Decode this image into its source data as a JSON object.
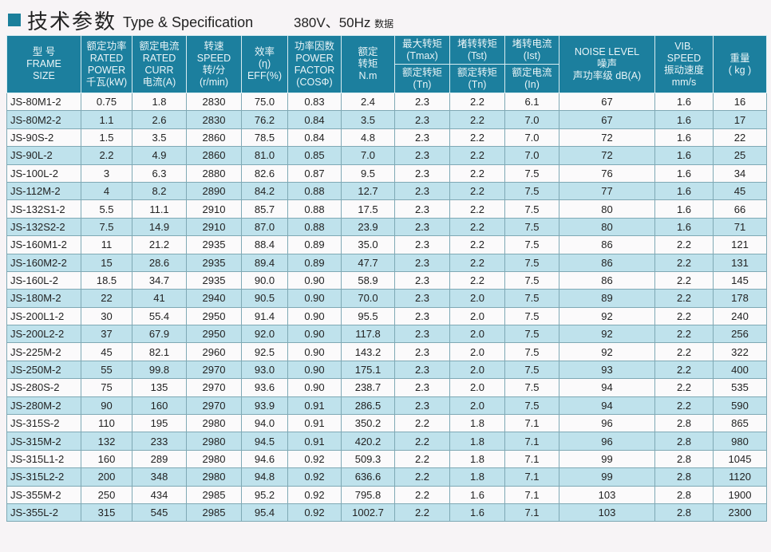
{
  "title": {
    "cn": "技术参数",
    "en": "Type & Specification",
    "voltage": "380V、50Hz",
    "voltage_suffix": "数据"
  },
  "headers": {
    "frame": [
      "型 号",
      "FRAME",
      "SIZE"
    ],
    "power": [
      "额定功率",
      "RATED",
      "POWER",
      "千瓦(kW)"
    ],
    "curr": [
      "额定电流",
      "RATED",
      "CURR",
      "电流(A)"
    ],
    "speed": [
      "转速",
      "SPEED",
      "转/分",
      "(r/min)"
    ],
    "eff": [
      "效率",
      "(η)",
      "EFF(%)"
    ],
    "pf": [
      "功率因数",
      "POWER",
      "FACTOR",
      "(COSΦ)"
    ],
    "torque": [
      "额定",
      "转矩",
      "N.m"
    ],
    "tmax_top": [
      "最大转矩",
      "(Tmax)"
    ],
    "tmax_bot": [
      "额定转矩",
      "(Tn)"
    ],
    "tst_top": [
      "堵转转矩",
      "(Tst)"
    ],
    "tst_bot": [
      "额定转矩",
      "(Tn)"
    ],
    "ist_top": [
      "堵转电流",
      "(Ist)"
    ],
    "ist_bot": [
      "额定电流",
      "(In)"
    ],
    "noise": [
      "NOISE LEVEL",
      "噪声",
      "声功率级 dB(A)"
    ],
    "vib": [
      "VIB.",
      "SPEED",
      "振动速度",
      "mm/s"
    ],
    "weight": [
      "重量",
      "( kg )"
    ]
  },
  "rows": [
    [
      "JS-80M1-2",
      "0.75",
      "1.8",
      "2830",
      "75.0",
      "0.83",
      "2.4",
      "2.3",
      "2.2",
      "6.1",
      "67",
      "1.6",
      "16"
    ],
    [
      "JS-80M2-2",
      "1.1",
      "2.6",
      "2830",
      "76.2",
      "0.84",
      "3.5",
      "2.3",
      "2.2",
      "7.0",
      "67",
      "1.6",
      "17"
    ],
    [
      "JS-90S-2",
      "1.5",
      "3.5",
      "2860",
      "78.5",
      "0.84",
      "4.8",
      "2.3",
      "2.2",
      "7.0",
      "72",
      "1.6",
      "22"
    ],
    [
      "JS-90L-2",
      "2.2",
      "4.9",
      "2860",
      "81.0",
      "0.85",
      "7.0",
      "2.3",
      "2.2",
      "7.0",
      "72",
      "1.6",
      "25"
    ],
    [
      "JS-100L-2",
      "3",
      "6.3",
      "2880",
      "82.6",
      "0.87",
      "9.5",
      "2.3",
      "2.2",
      "7.5",
      "76",
      "1.6",
      "34"
    ],
    [
      "JS-112M-2",
      "4",
      "8.2",
      "2890",
      "84.2",
      "0.88",
      "12.7",
      "2.3",
      "2.2",
      "7.5",
      "77",
      "1.6",
      "45"
    ],
    [
      "JS-132S1-2",
      "5.5",
      "11.1",
      "2910",
      "85.7",
      "0.88",
      "17.5",
      "2.3",
      "2.2",
      "7.5",
      "80",
      "1.6",
      "66"
    ],
    [
      "JS-132S2-2",
      "7.5",
      "14.9",
      "2910",
      "87.0",
      "0.88",
      "23.9",
      "2.3",
      "2.2",
      "7.5",
      "80",
      "1.6",
      "71"
    ],
    [
      "JS-160M1-2",
      "11",
      "21.2",
      "2935",
      "88.4",
      "0.89",
      "35.0",
      "2.3",
      "2.2",
      "7.5",
      "86",
      "2.2",
      "121"
    ],
    [
      "JS-160M2-2",
      "15",
      "28.6",
      "2935",
      "89.4",
      "0.89",
      "47.7",
      "2.3",
      "2.2",
      "7.5",
      "86",
      "2.2",
      "131"
    ],
    [
      "JS-160L-2",
      "18.5",
      "34.7",
      "2935",
      "90.0",
      "0.90",
      "58.9",
      "2.3",
      "2.2",
      "7.5",
      "86",
      "2.2",
      "145"
    ],
    [
      "JS-180M-2",
      "22",
      "41",
      "2940",
      "90.5",
      "0.90",
      "70.0",
      "2.3",
      "2.0",
      "7.5",
      "89",
      "2.2",
      "178"
    ],
    [
      "JS-200L1-2",
      "30",
      "55.4",
      "2950",
      "91.4",
      "0.90",
      "95.5",
      "2.3",
      "2.0",
      "7.5",
      "92",
      "2.2",
      "240"
    ],
    [
      "JS-200L2-2",
      "37",
      "67.9",
      "2950",
      "92.0",
      "0.90",
      "117.8",
      "2.3",
      "2.0",
      "7.5",
      "92",
      "2.2",
      "256"
    ],
    [
      "JS-225M-2",
      "45",
      "82.1",
      "2960",
      "92.5",
      "0.90",
      "143.2",
      "2.3",
      "2.0",
      "7.5",
      "92",
      "2.2",
      "322"
    ],
    [
      "JS-250M-2",
      "55",
      "99.8",
      "2970",
      "93.0",
      "0.90",
      "175.1",
      "2.3",
      "2.0",
      "7.5",
      "93",
      "2.2",
      "400"
    ],
    [
      "JS-280S-2",
      "75",
      "135",
      "2970",
      "93.6",
      "0.90",
      "238.7",
      "2.3",
      "2.0",
      "7.5",
      "94",
      "2.2",
      "535"
    ],
    [
      "JS-280M-2",
      "90",
      "160",
      "2970",
      "93.9",
      "0.91",
      "286.5",
      "2.3",
      "2.0",
      "7.5",
      "94",
      "2.2",
      "590"
    ],
    [
      "JS-315S-2",
      "110",
      "195",
      "2980",
      "94.0",
      "0.91",
      "350.2",
      "2.2",
      "1.8",
      "7.1",
      "96",
      "2.8",
      "865"
    ],
    [
      "JS-315M-2",
      "132",
      "233",
      "2980",
      "94.5",
      "0.91",
      "420.2",
      "2.2",
      "1.8",
      "7.1",
      "96",
      "2.8",
      "980"
    ],
    [
      "JS-315L1-2",
      "160",
      "289",
      "2980",
      "94.6",
      "0.92",
      "509.3",
      "2.2",
      "1.8",
      "7.1",
      "99",
      "2.8",
      "1045"
    ],
    [
      "JS-315L2-2",
      "200",
      "348",
      "2980",
      "94.8",
      "0.92",
      "636.6",
      "2.2",
      "1.8",
      "7.1",
      "99",
      "2.8",
      "1120"
    ],
    [
      "JS-355M-2",
      "250",
      "434",
      "2985",
      "95.2",
      "0.92",
      "795.8",
      "2.2",
      "1.6",
      "7.1",
      "103",
      "2.8",
      "1900"
    ],
    [
      "JS-355L-2",
      "315",
      "545",
      "2985",
      "95.4",
      "0.92",
      "1002.7",
      "2.2",
      "1.6",
      "7.1",
      "103",
      "2.8",
      "2300"
    ]
  ]
}
